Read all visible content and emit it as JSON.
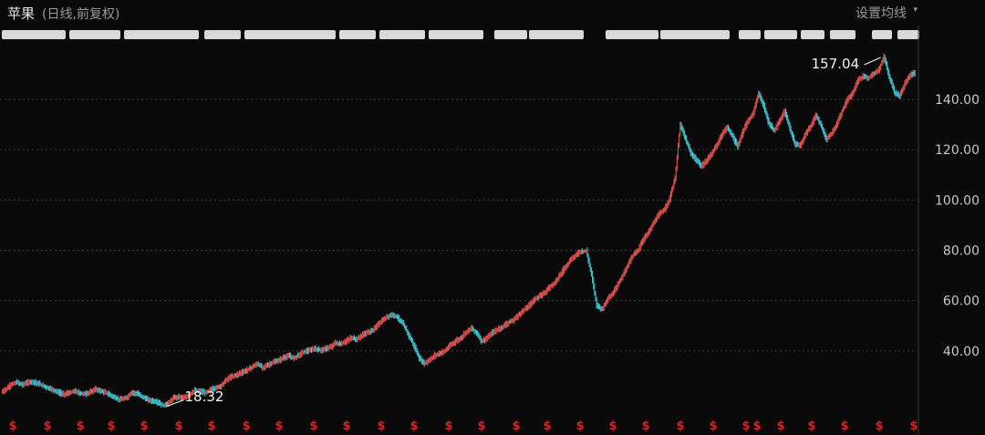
{
  "header": {
    "stock_name": "苹果",
    "subtitle": "(日线,前复权)",
    "ma_setting": "设置均线",
    "ma_caret": "▾"
  },
  "colors": {
    "background": "#0a0a0a",
    "up": "#e0524e",
    "down": "#3cc6d6",
    "grid": "#3a3a3a",
    "axis_text": "#c8c8c8",
    "dividend": "#e02020"
  },
  "annotations": {
    "max_label": "157.04",
    "min_label": "18.32"
  },
  "dividend_marker": "$",
  "chart_data": {
    "type": "line",
    "title": "苹果 (日线,前复权)",
    "yticks": [
      "40.00",
      "60.00",
      "80.00",
      "100.00",
      "120.00",
      "140.00"
    ],
    "ylim": [
      16,
      165
    ],
    "grid": true,
    "series": [
      {
        "name": "",
        "values": [
          23.5,
          25.0,
          26.8,
          27.5,
          26.6,
          27.4,
          27.8,
          27.1,
          26.2,
          25.2,
          24.5,
          23.4,
          22.8,
          23.3,
          24.0,
          23.2,
          22.9,
          23.6,
          24.8,
          24.1,
          23.4,
          22.3,
          21.1,
          20.7,
          21.4,
          23.5,
          23.0,
          21.8,
          20.6,
          20.1,
          19.5,
          18.32,
          19.2,
          21.4,
          21.8,
          21.2,
          22.5,
          24.3,
          23.9,
          23.4,
          24.5,
          25.3,
          26.1,
          28.4,
          29.8,
          30.5,
          31.4,
          32.3,
          33.6,
          34.8,
          33.5,
          34.3,
          35.4,
          36.1,
          37.3,
          38.0,
          37.2,
          38.5,
          39.8,
          40.1,
          41.0,
          40.3,
          40.8,
          41.5,
          43.2,
          42.6,
          43.9,
          45.2,
          44.6,
          46.1,
          47.3,
          48.0,
          50.2,
          52.1,
          53.8,
          54.5,
          53.1,
          50.4,
          46.3,
          42.2,
          37.1,
          35.0,
          36.4,
          38.2,
          39.0,
          40.1,
          42.3,
          43.9,
          45.1,
          47.6,
          49.0,
          47.2,
          43.8,
          45.1,
          47.3,
          48.4,
          49.6,
          51.2,
          52.1,
          54.3,
          56.2,
          58.0,
          60.4,
          61.6,
          63.2,
          65.5,
          67.3,
          70.2,
          73.4,
          76.1,
          78.2,
          79.6,
          79.8,
          70.6,
          58.3,
          56.5,
          60.4,
          62.5,
          66.3,
          70.1,
          74.4,
          78.2,
          80.3,
          84.6,
          87.5,
          91.2,
          94.4,
          96.3,
          100.6,
          108.5,
          130.1,
          124.3,
          118.6,
          116.2,
          113.3,
          115.6,
          118.4,
          121.8,
          126.2,
          129.1,
          125.3,
          121.3,
          127.2,
          131.5,
          134.6,
          142.3,
          137.4,
          130.1,
          127.6,
          131.2,
          135.5,
          128.4,
          122.2,
          121.6,
          126.3,
          129.5,
          133.8,
          129.2,
          124.3,
          126.6,
          130.2,
          135.4,
          139.8,
          142.3,
          147.4,
          149.2,
          148.5,
          150.3,
          151.6,
          157.04,
          149.2,
          142.8,
          141.5,
          146.1,
          149.8,
          150.5
        ]
      }
    ]
  }
}
